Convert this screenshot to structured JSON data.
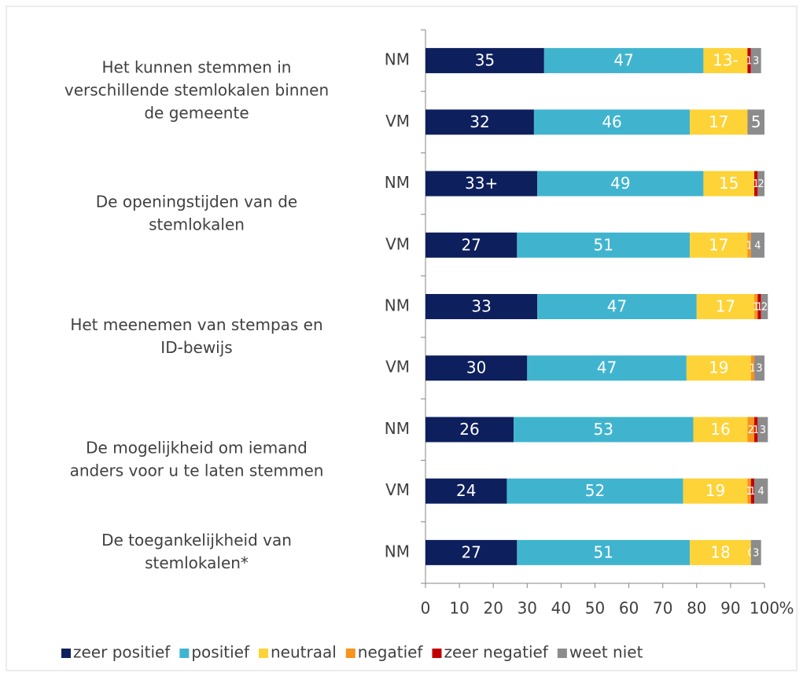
{
  "chart_data": {
    "type": "stacked-bar-horizontal",
    "groups": [
      {
        "label": [
          "Het kunnen stemmen in",
          "verschillende stemlokalen binnen",
          "de gemeente"
        ]
      },
      {
        "label": [
          "De openingstijden van de",
          "stemlokalen"
        ]
      },
      {
        "label": [
          "Het meenemen van stempas en",
          "ID-bewijs"
        ]
      },
      {
        "label": [
          "De mogelijkheid om iemand",
          "anders voor u te laten stemmen"
        ]
      },
      {
        "label": [
          "De toegankelijkheid van",
          "stemlokalen*"
        ]
      }
    ],
    "categories": [
      "NM",
      "VM",
      "NM",
      "VM",
      "NM",
      "VM",
      "NM",
      "VM",
      "NM"
    ],
    "series": [
      {
        "name": "zeer positief",
        "color": "#0d1f5c",
        "values": [
          35,
          32,
          33,
          27,
          33,
          30,
          26,
          24,
          27
        ],
        "value_labels": [
          "35",
          "32",
          "33+",
          "27",
          "33",
          "30",
          "26",
          "24",
          "27"
        ]
      },
      {
        "name": "positief",
        "color": "#40b4cf",
        "values": [
          47,
          46,
          49,
          51,
          47,
          47,
          53,
          52,
          51
        ]
      },
      {
        "name": "neutraal",
        "color": "#fdd338",
        "values": [
          13,
          17,
          15,
          17,
          17,
          19,
          16,
          19,
          18
        ],
        "value_labels": [
          "13-",
          "17",
          "15",
          "17",
          "17",
          "19",
          "16",
          "19",
          "18"
        ]
      },
      {
        "name": "negatief",
        "color": "#f7941d",
        "values": [
          null,
          null,
          null,
          1,
          1,
          1,
          2,
          1,
          null
        ]
      },
      {
        "name": "zeer negatief",
        "color": "#c00000",
        "values": [
          1,
          null,
          1,
          null,
          1,
          null,
          1,
          1,
          0
        ]
      },
      {
        "name": "weet niet",
        "color": "#8c8c8c",
        "values": [
          3,
          5,
          2,
          4,
          2,
          3,
          3,
          4,
          3
        ]
      }
    ],
    "x_label": "%",
    "xlim": [
      0,
      100
    ],
    "xticks": [
      0,
      10,
      20,
      30,
      40,
      50,
      60,
      70,
      80,
      90,
      100
    ],
    "legend": "bottom"
  }
}
